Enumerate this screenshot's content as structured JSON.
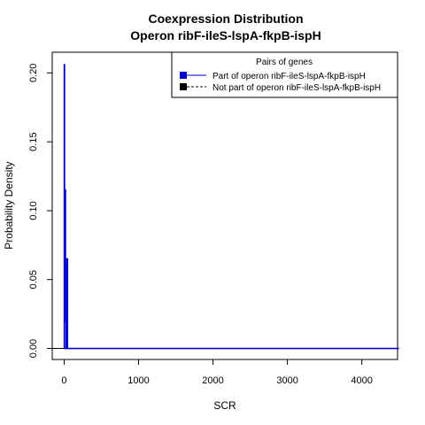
{
  "chart_data": {
    "type": "line",
    "title": "Coexpression Distribution",
    "subtitle": "Operon ribF-ileS-lspA-fkpB-ispH",
    "xlabel": "SCR",
    "ylabel": "Probability Density",
    "xlim": [
      -160,
      4480
    ],
    "ylim": [
      -0.008,
      0.215
    ],
    "xticks": [
      0,
      1000,
      2000,
      3000,
      4000
    ],
    "xtick_labels": [
      "0",
      "1000",
      "2000",
      "3000",
      "4000"
    ],
    "yticks": [
      0.0,
      0.05,
      0.1,
      0.15,
      0.2
    ],
    "ytick_labels": [
      "0.00",
      "0.05",
      "0.10",
      "0.15",
      "0.20"
    ],
    "grid": false,
    "legend": {
      "title": "Pairs of genes",
      "placement": "top-right",
      "entries": [
        {
          "label": "Part of operon ribF-ileS-lspA-fkpB-ispH",
          "color": "#0000cc",
          "line": "solid"
        },
        {
          "label": "Not part of operon ribF-ileS-lspA-fkpB-ispH",
          "color": "#000000",
          "line": "dashed"
        }
      ]
    },
    "series": [
      {
        "name": "Part of operon ribF-ileS-lspA-fkpB-ispH",
        "color": "#0000cc",
        "x": [
          0,
          2,
          2,
          5,
          5,
          10,
          10,
          18,
          18,
          25,
          25,
          30,
          30,
          38,
          38,
          45,
          45,
          52,
          52,
          4500
        ],
        "y": [
          0,
          0,
          0.206,
          0.206,
          0.03,
          0.03,
          0.115,
          0.115,
          0.02,
          0.02,
          0,
          0,
          0,
          0,
          0.065,
          0.065,
          0,
          0,
          0,
          0
        ]
      },
      {
        "name": "Not part of operon ribF-ileS-lspA-fkpB-ispH",
        "color": "#000000",
        "x": [
          -160,
          4480
        ],
        "y": [
          0,
          0
        ]
      }
    ]
  }
}
